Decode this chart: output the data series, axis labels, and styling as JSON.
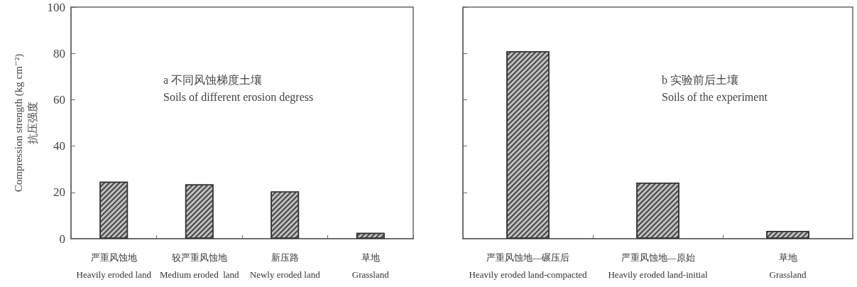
{
  "chart_data": [
    {
      "type": "bar",
      "ylabel": "Compression strength (kg cm⁻²)\n抗压强度",
      "categories": [
        "严重风蚀地\nHeavily eroded land",
        "较严重风蚀地\nMedium eroded  land",
        "新压路\nNewly eroded land",
        "草地\nGrassland"
      ],
      "values": [
        24.6,
        23.5,
        20.4,
        2.5
      ],
      "color": "#bfbfbf",
      "ylim": [
        0,
        100
      ],
      "yticks": [
        0,
        20,
        40,
        60,
        80,
        100
      ],
      "grid": false,
      "annotations": [
        "a 不同风蚀梯度土壤\nSoils of different erosion degress"
      ]
    },
    {
      "type": "bar",
      "categories": [
        "严重风蚀地—碾压后\nHeavily eroded land-compacted",
        "严重风蚀地—原始\nHeavily eroded land-initial",
        "草地\nGrassland"
      ],
      "values": [
        81.0,
        24.2,
        3.4
      ],
      "color": "#bfbfbf",
      "ylim": [
        0,
        100
      ],
      "yticks": [
        0,
        {
          "value": 20,
          "label": null
        },
        {
          "value": 40,
          "label": null
        },
        {
          "value": 60,
          "label": null
        },
        {
          "value": 80,
          "label": null
        },
        100
      ],
      "grid": false,
      "tick_labels": "x",
      "annotations": [
        "b 实验前后土壤\nSoils of the experiment"
      ]
    }
  ]
}
